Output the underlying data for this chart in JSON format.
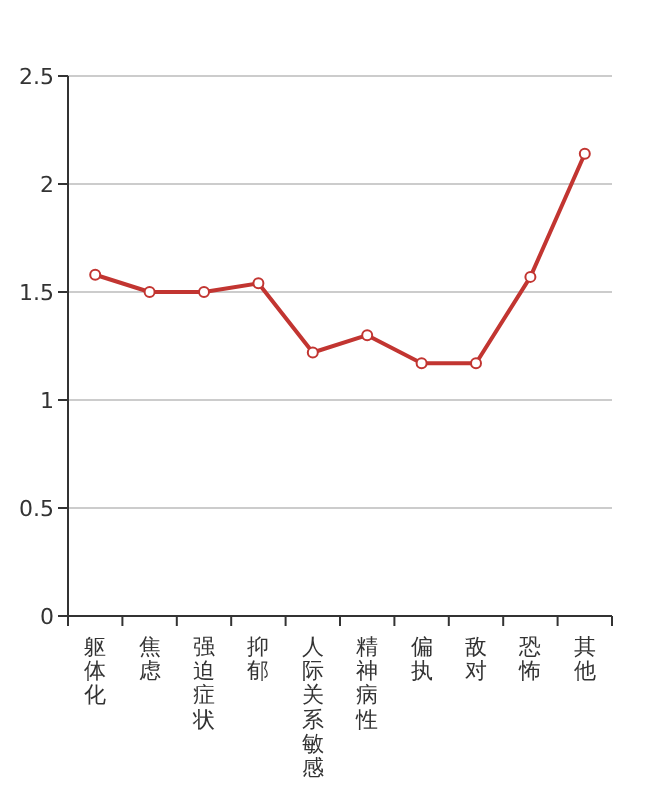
{
  "chart_data": {
    "type": "line",
    "categories": [
      "躯体化",
      "焦虑",
      "强迫症状",
      "抑郁",
      "人际关系敏感",
      "精神病性",
      "偏执",
      "敌对",
      "恐怖",
      "其他"
    ],
    "series": [
      {
        "color": "#c23531",
        "values": [
          1.58,
          1.5,
          1.5,
          1.54,
          1.22,
          1.3,
          1.17,
          1.17,
          1.57,
          2.14
        ]
      }
    ],
    "ylim": [
      0,
      2.5
    ],
    "yticks": [
      0,
      0.5,
      1,
      1.5,
      2,
      2.5
    ],
    "grid": "y",
    "marker": "circle",
    "line_style": "solid"
  }
}
